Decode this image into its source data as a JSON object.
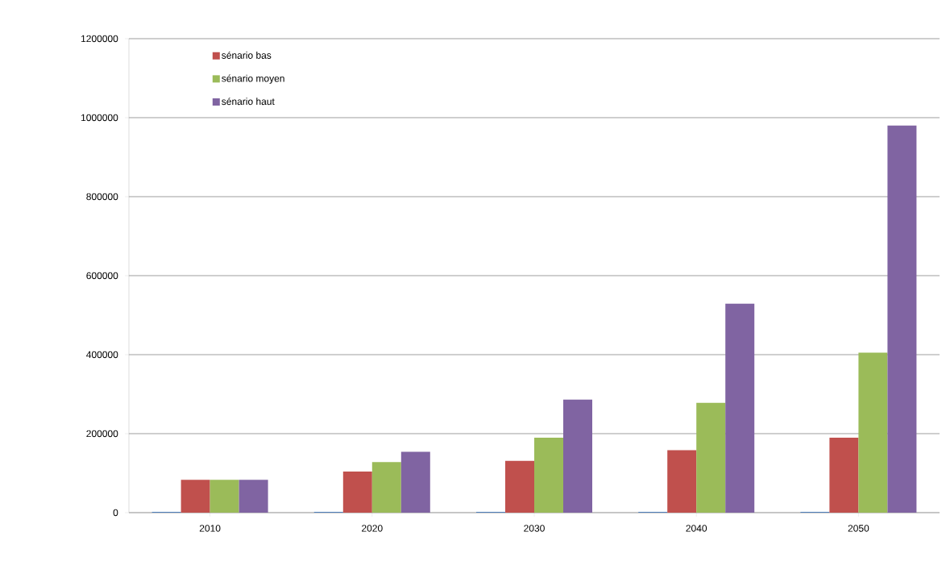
{
  "chart_data": {
    "type": "bar",
    "categories": [
      "2010",
      "2020",
      "2030",
      "2040",
      "2050"
    ],
    "series": [
      {
        "color": "#4f81bd",
        "values": [
          2000,
          2000,
          2000,
          2000,
          2000
        ]
      },
      {
        "name": "sénario bas",
        "color": "#c0504d",
        "values": [
          83000,
          104000,
          131000,
          158000,
          190000
        ]
      },
      {
        "name": "sénario moyen",
        "color": "#9bbb59",
        "values": [
          83000,
          128000,
          190000,
          278000,
          405000
        ]
      },
      {
        "name": "sénario haut",
        "color": "#8064a2",
        "values": [
          83000,
          154000,
          286000,
          529000,
          980000
        ]
      }
    ],
    "ylim": [
      0,
      1200000
    ],
    "yticks": [
      0,
      200000,
      400000,
      600000,
      800000,
      1000000,
      1200000
    ],
    "grid": "y",
    "legend": "top left"
  }
}
